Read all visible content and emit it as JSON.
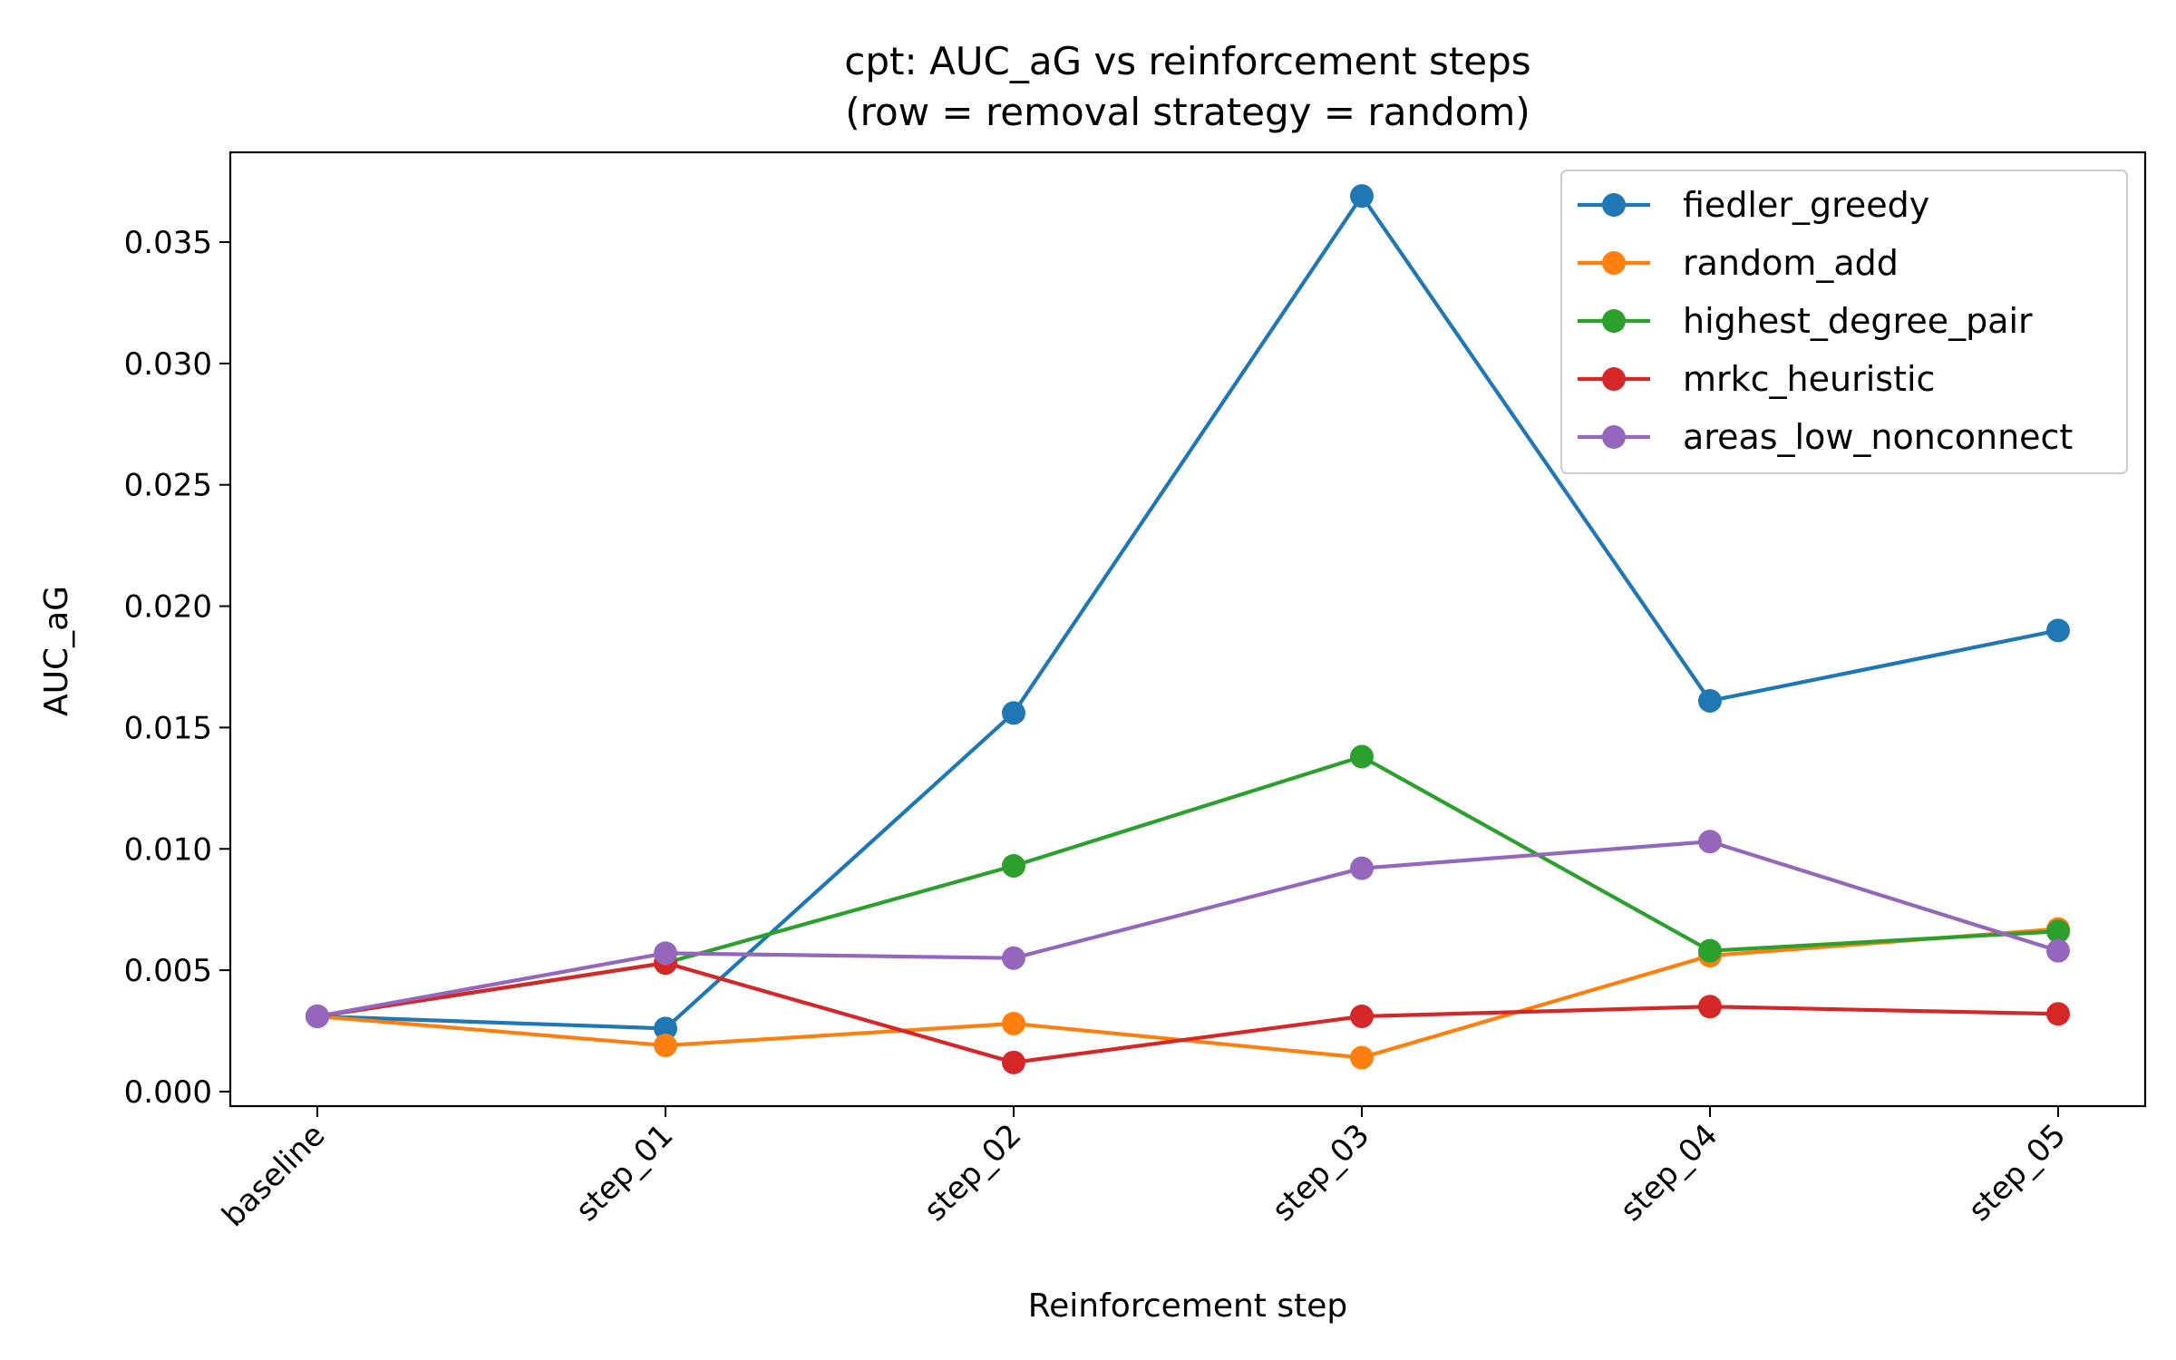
{
  "chart_data": {
    "type": "line",
    "title": "cpt: AUC_aG vs reinforcement steps",
    "subtitle": "(row = removal strategy = random)",
    "xlabel": "Reinforcement step",
    "ylabel": "AUC_aG",
    "categories": [
      "baseline",
      "step_01",
      "step_02",
      "step_03",
      "step_04",
      "step_05"
    ],
    "ylim": [
      -0.0006,
      0.0387
    ],
    "yticks": [
      0.0,
      0.005,
      0.01,
      0.015,
      0.02,
      0.025,
      0.03,
      0.035
    ],
    "ytick_labels": [
      "0.000",
      "0.005",
      "0.010",
      "0.015",
      "0.020",
      "0.025",
      "0.030",
      "0.035"
    ],
    "grid": false,
    "legend_position": "top-right",
    "series": [
      {
        "name": "fiedler_greedy",
        "color": "#1f77b4",
        "values": [
          0.0031,
          0.0026,
          0.0156,
          0.0369,
          0.0161,
          0.019
        ]
      },
      {
        "name": "random_add",
        "color": "#ff7f0e",
        "values": [
          0.0031,
          0.0019,
          0.0028,
          0.0014,
          0.0056,
          0.0067
        ]
      },
      {
        "name": "highest_degree_pair",
        "color": "#2ca02c",
        "values": [
          0.0031,
          0.0053,
          0.0093,
          0.0138,
          0.0058,
          0.0066
        ]
      },
      {
        "name": "mrkc_heuristic",
        "color": "#d62728",
        "values": [
          0.0031,
          0.0053,
          0.0012,
          0.0031,
          0.0035,
          0.0032
        ]
      },
      {
        "name": "areas_low_nonconnect",
        "color": "#9467bd",
        "values": [
          0.0031,
          0.0057,
          0.0055,
          0.0092,
          0.0103,
          0.0058
        ]
      }
    ]
  }
}
